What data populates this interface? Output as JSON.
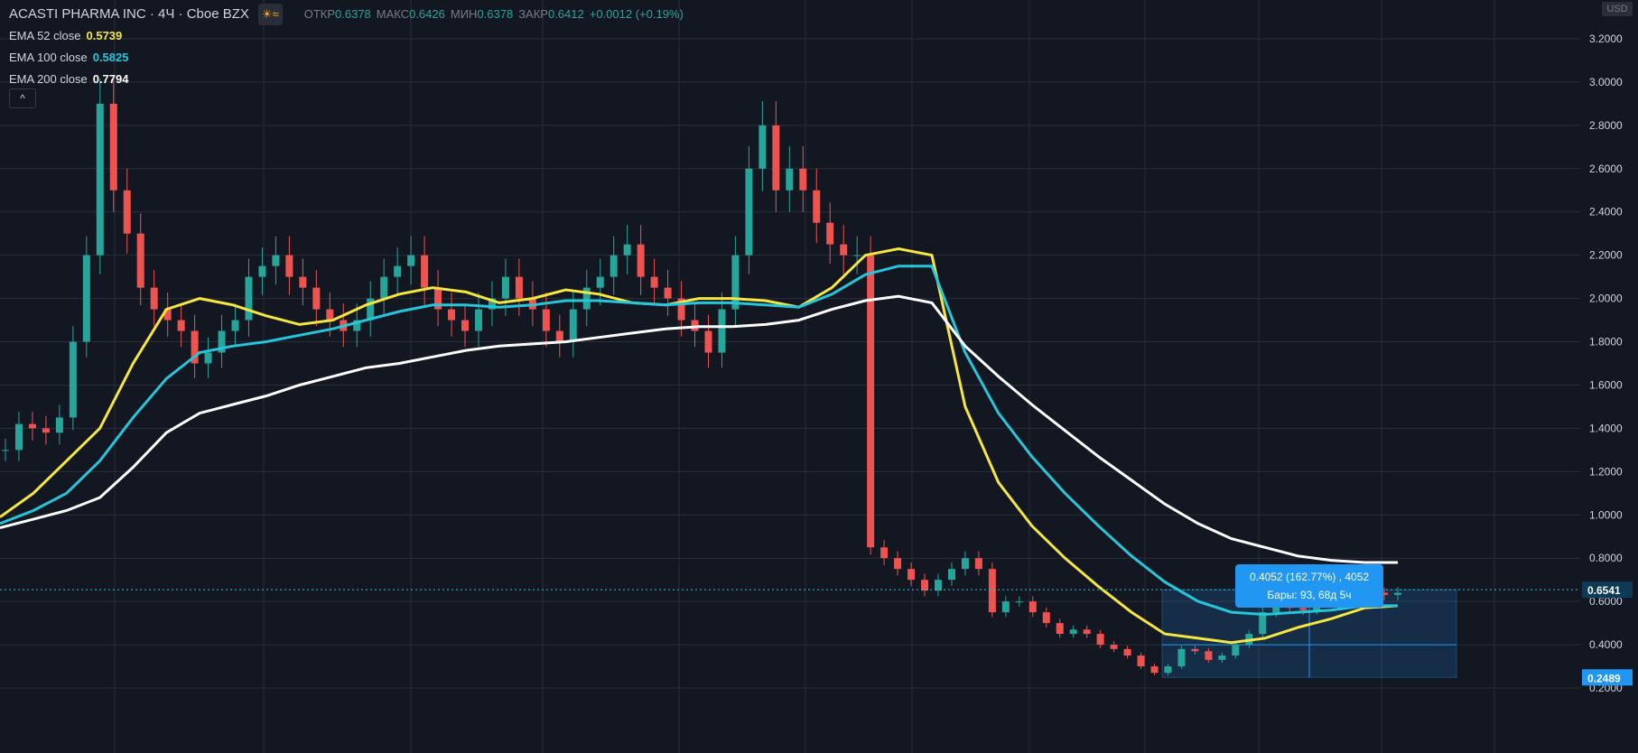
{
  "header": {
    "symbol": "ACASTI PHARMA INC · 4Ч · Cboe BZX",
    "ohlc": [
      {
        "key": "ОТКР",
        "value": "0.6378"
      },
      {
        "key": "МАКС",
        "value": "0.6426"
      },
      {
        "key": "МИН",
        "value": "0.6378"
      },
      {
        "key": "ЗАКР",
        "value": "0.6412"
      }
    ],
    "change": "+0.0012 (+0.19%)",
    "currency": "USD",
    "collapse_glyph": "^",
    "icons": [
      "sun-icon",
      "wave-icon"
    ]
  },
  "indicators": [
    {
      "name": "EMA 52 close",
      "value": "0.5739",
      "color": "#f5e642"
    },
    {
      "name": "EMA 100 close",
      "value": "0.5825",
      "color": "#26c6da"
    },
    {
      "name": "EMA 200 close",
      "value": "0.7794",
      "color": "#ffffff"
    }
  ],
  "measure_tooltip": {
    "line1": "0.4052 (162.77%) , 4052",
    "line2": "Бары: 93, 68д 5ч"
  },
  "price_labels": {
    "current": "0.6541",
    "low": "0.2489"
  },
  "colors": {
    "background": "#131722",
    "grid": "#2a2e39",
    "up": "#26a69a",
    "down": "#ef5350",
    "accent": "#2196f3",
    "axis_text": "#d1d4dc"
  },
  "chart_data": {
    "type": "candlestick",
    "y_ticks": [
      "3.2000",
      "3.0000",
      "2.8000",
      "2.6000",
      "2.4000",
      "2.2000",
      "2.0000",
      "1.8000",
      "1.6000",
      "1.4000",
      "1.2000",
      "1.0000",
      "0.8000",
      "0.6000",
      "0.4000",
      "0.2000"
    ],
    "ylim": [
      0.15,
      3.3
    ],
    "grid": true,
    "series": [
      {
        "name": "EMA 52 close",
        "values": [
          0.99,
          1.1,
          1.25,
          1.4,
          1.7,
          1.95,
          2.0,
          1.97,
          1.92,
          1.88,
          1.9,
          1.97,
          2.02,
          2.05,
          2.03,
          1.98,
          2.0,
          2.04,
          2.02,
          1.98,
          1.97,
          2.0,
          2.0,
          1.99,
          1.96,
          2.05,
          2.2,
          2.23,
          2.2,
          1.5,
          1.15,
          0.95,
          0.8,
          0.67,
          0.55,
          0.45,
          0.43,
          0.41,
          0.43,
          0.48,
          0.52,
          0.57,
          0.58
        ]
      },
      {
        "name": "EMA 100 close",
        "values": [
          0.96,
          1.02,
          1.1,
          1.25,
          1.45,
          1.63,
          1.75,
          1.78,
          1.8,
          1.83,
          1.86,
          1.9,
          1.94,
          1.97,
          1.97,
          1.96,
          1.97,
          1.99,
          1.99,
          1.98,
          1.97,
          1.98,
          1.98,
          1.97,
          1.96,
          2.02,
          2.11,
          2.15,
          2.15,
          1.75,
          1.47,
          1.27,
          1.1,
          0.95,
          0.81,
          0.69,
          0.6,
          0.55,
          0.54,
          0.55,
          0.56,
          0.58,
          0.58
        ]
      },
      {
        "name": "EMA 200 close",
        "values": [
          0.94,
          0.98,
          1.02,
          1.08,
          1.22,
          1.38,
          1.47,
          1.51,
          1.55,
          1.6,
          1.64,
          1.68,
          1.7,
          1.73,
          1.76,
          1.78,
          1.79,
          1.8,
          1.82,
          1.84,
          1.86,
          1.87,
          1.87,
          1.88,
          1.9,
          1.95,
          1.99,
          2.01,
          1.98,
          1.78,
          1.64,
          1.51,
          1.39,
          1.27,
          1.16,
          1.05,
          0.96,
          0.89,
          0.85,
          0.81,
          0.79,
          0.78,
          0.78
        ]
      }
    ],
    "candle_series": [
      1.3,
      1.42,
      1.4,
      1.38,
      1.45,
      1.8,
      2.2,
      2.9,
      2.5,
      2.3,
      2.05,
      1.95,
      1.9,
      1.85,
      1.7,
      1.75,
      1.85,
      1.9,
      2.1,
      2.15,
      2.2,
      2.1,
      2.05,
      1.95,
      1.9,
      1.85,
      1.9,
      2.0,
      2.1,
      2.15,
      2.2,
      2.05,
      1.95,
      1.9,
      1.85,
      1.95,
      2.0,
      2.1,
      2.0,
      1.95,
      1.85,
      1.8,
      1.95,
      2.05,
      2.1,
      2.2,
      2.25,
      2.1,
      2.05,
      2.0,
      1.9,
      1.85,
      1.75,
      1.95,
      2.2,
      2.6,
      2.8,
      2.5,
      2.6,
      2.5,
      2.35,
      2.25,
      2.2,
      2.2,
      0.85,
      0.8,
      0.75,
      0.7,
      0.65,
      0.7,
      0.75,
      0.8,
      0.75,
      0.55,
      0.6,
      0.6,
      0.55,
      0.5,
      0.45,
      0.47,
      0.45,
      0.4,
      0.38,
      0.35,
      0.3,
      0.27,
      0.3,
      0.38,
      0.37,
      0.33,
      0.35,
      0.4,
      0.45,
      0.55,
      0.6,
      0.57,
      0.56,
      0.6,
      0.61,
      0.62,
      0.65,
      0.64,
      0.63,
      0.64
    ],
    "range_box": {
      "high": 0.6541,
      "low": 0.2489
    }
  }
}
